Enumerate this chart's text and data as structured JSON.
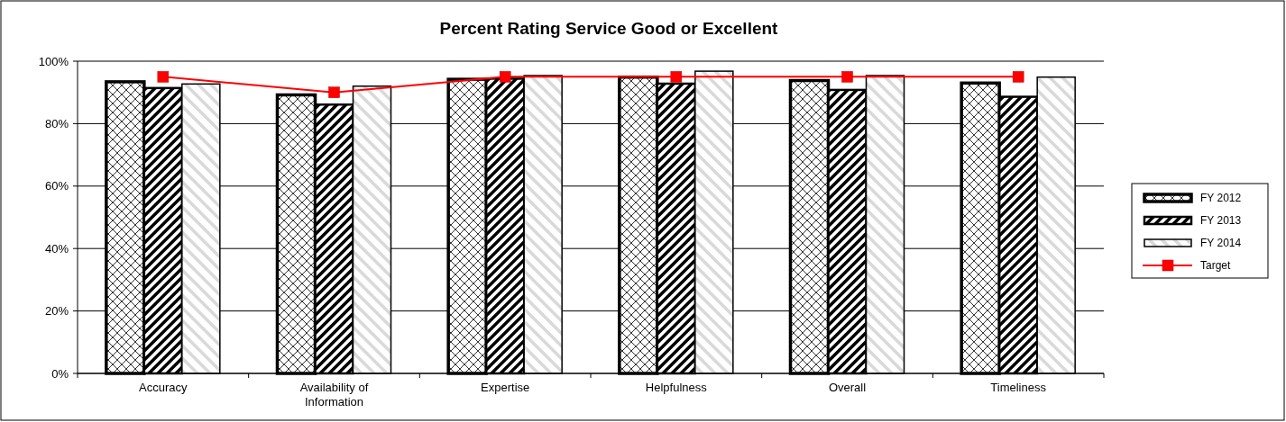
{
  "chart_data": {
    "type": "bar",
    "title": "Percent Rating Service Good or Excellent",
    "categories": [
      "Accuracy",
      "Availability of Information",
      "Expertise",
      "Helpfulness",
      "Overall",
      "Timeliness"
    ],
    "series": [
      {
        "name": "FY 2012",
        "color": "#000000",
        "values": [
          93.4,
          89.2,
          94.2,
          94.9,
          93.8,
          93
        ]
      },
      {
        "name": "FY 2013",
        "color": "#000000",
        "values": [
          91.4,
          86.1,
          94.4,
          92.8,
          90.8,
          88.6
        ]
      },
      {
        "name": "FY 2014",
        "color": "#000000",
        "values": [
          92.7,
          92,
          95.4,
          96.8,
          95.4,
          94.9
        ]
      },
      {
        "name": "Target",
        "type": "line",
        "color": "#ff0000",
        "marker": "square",
        "values": [
          95,
          90,
          95,
          95,
          95,
          95
        ]
      }
    ],
    "ylim": [
      0,
      100
    ],
    "yticks": [
      {
        "value": 0,
        "label": "0%"
      },
      {
        "value": 20,
        "label": "20%"
      },
      {
        "value": 40,
        "label": "40%"
      },
      {
        "value": 60,
        "label": "60%"
      },
      {
        "value": 80,
        "label": "80%"
      },
      {
        "value": 100,
        "label": "100%"
      }
    ],
    "grid": "y",
    "legend": "right"
  }
}
